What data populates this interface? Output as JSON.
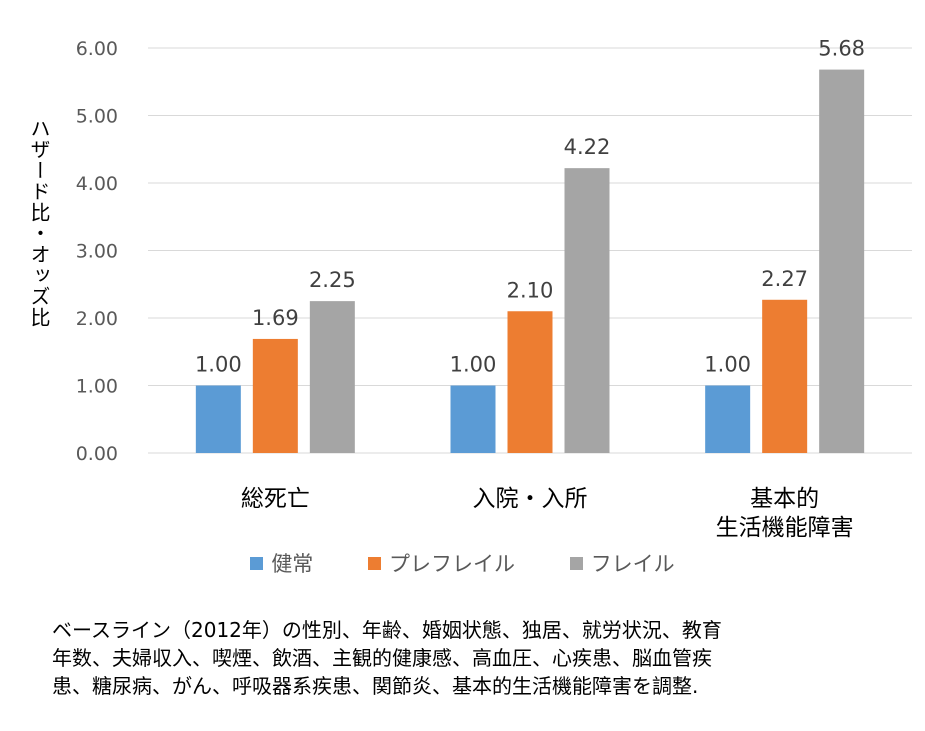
{
  "chart_data": {
    "type": "bar",
    "ylabel": "ハザード比・オッズ比",
    "xlabel": "",
    "ylim": [
      0,
      6
    ],
    "yticks": [
      "0.00",
      "1.00",
      "2.00",
      "3.00",
      "4.00",
      "5.00",
      "6.00"
    ],
    "grid": true,
    "legend_position": "bottom",
    "categories": [
      [
        "総死亡"
      ],
      [
        "入院・入所"
      ],
      [
        "基本的",
        "生活機能障害"
      ]
    ],
    "series": [
      {
        "name": "健常",
        "color": "#5B9BD5",
        "values": [
          1.0,
          1.0,
          1.0
        ],
        "labels": [
          "1.00",
          "1.00",
          "1.00"
        ]
      },
      {
        "name": "プレフレイル",
        "color": "#ED7D31",
        "values": [
          1.69,
          2.1,
          2.27
        ],
        "labels": [
          "1.69",
          "2.10",
          "2.27"
        ]
      },
      {
        "name": "フレイル",
        "color": "#A5A5A5",
        "values": [
          2.25,
          4.22,
          5.68
        ],
        "labels": [
          "2.25",
          "4.22",
          "5.68"
        ]
      }
    ]
  },
  "footnote": "ベースライン（2012年）の性別、年齢、婚姻状態、独居、就労状況、教育\n年数、夫婦収入、喫煙、飲酒、主観的健康感、高血圧、心疾患、脳血管疾\n患、糖尿病、がん、呼吸器系疾患、関節炎、基本的生活機能障害を調整."
}
